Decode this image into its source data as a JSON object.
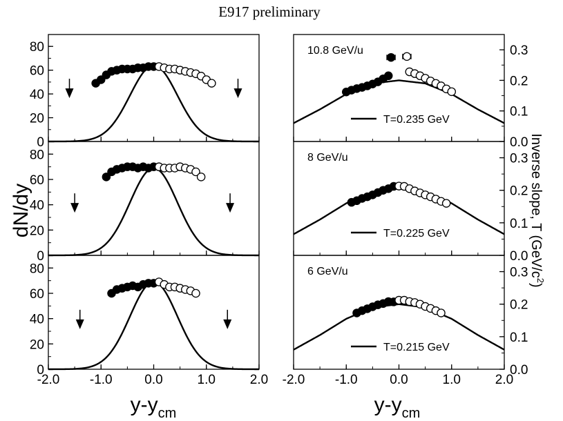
{
  "figure_title": "E917 preliminary",
  "left_ylabel": "dN/dy",
  "right_ylabel": "Inverse slope, T (GeV/c",
  "right_ylabel_sup": "2",
  "right_ylabel_close": ")",
  "xlabel_main": "y-y",
  "xlabel_sub": "cm",
  "chart_data": [
    {
      "type": "scatter",
      "panel": "left-top",
      "xlim": [
        -2,
        2
      ],
      "ylim": [
        0,
        90
      ],
      "x_ticks": [
        "-2.0",
        "-1.0",
        "0.0",
        "1.0",
        "2.0"
      ],
      "y_ticks": [
        "0",
        "20",
        "40",
        "60",
        "80"
      ],
      "series": [
        {
          "marker": "filled-circle",
          "x": [
            -1.1,
            -1.0,
            -0.9,
            -0.8,
            -0.7,
            -0.6,
            -0.5,
            -0.4,
            -0.3,
            -0.2,
            -0.1,
            0.0
          ],
          "y": [
            49,
            52,
            56,
            59,
            60,
            61,
            61,
            61,
            62,
            62,
            63,
            63
          ]
        },
        {
          "marker": "open-circle",
          "x": [
            0.1,
            0.2,
            0.3,
            0.4,
            0.5,
            0.6,
            0.7,
            0.8,
            0.9,
            1.0,
            1.1
          ],
          "y": [
            63,
            62,
            61,
            61,
            60,
            59,
            58,
            57,
            55,
            52,
            49
          ]
        },
        {
          "line": "gaussian",
          "x0": 0.0,
          "sigma": 0.45,
          "peak": 64
        }
      ],
      "arrows": [
        {
          "x": -1.6,
          "y": 40
        },
        {
          "x": 1.6,
          "y": 40
        }
      ]
    },
    {
      "type": "scatter",
      "panel": "left-middle",
      "xlim": [
        -2,
        2
      ],
      "ylim": [
        0,
        90
      ],
      "x_ticks": [
        "-2.0",
        "-1.0",
        "0.0",
        "1.0",
        "2.0"
      ],
      "y_ticks": [
        "0",
        "20",
        "40",
        "60",
        "80"
      ],
      "series": [
        {
          "marker": "filled-circle",
          "x": [
            -0.9,
            -0.8,
            -0.7,
            -0.6,
            -0.5,
            -0.4,
            -0.3,
            -0.2,
            -0.1,
            0.0
          ],
          "y": [
            62,
            66,
            68,
            69,
            70,
            70,
            69,
            70,
            69,
            70
          ]
        },
        {
          "marker": "open-circle",
          "x": [
            0.1,
            0.2,
            0.3,
            0.4,
            0.5,
            0.6,
            0.7,
            0.8,
            0.9
          ],
          "y": [
            70,
            69,
            69,
            69,
            70,
            69,
            68,
            66,
            62
          ]
        },
        {
          "line": "gaussian",
          "x0": 0.0,
          "sigma": 0.45,
          "peak": 69
        }
      ],
      "arrows": [
        {
          "x": -1.5,
          "y": 37
        },
        {
          "x": 1.45,
          "y": 37
        }
      ]
    },
    {
      "type": "scatter",
      "panel": "left-bottom",
      "xlim": [
        -2,
        2
      ],
      "ylim": [
        0,
        90
      ],
      "x_ticks": [
        "-2.0",
        "-1.0",
        "0.0",
        "1.0",
        "2.0"
      ],
      "y_ticks": [
        "0",
        "20",
        "40",
        "60",
        "80"
      ],
      "series": [
        {
          "marker": "filled-circle",
          "x": [
            -0.8,
            -0.7,
            -0.6,
            -0.5,
            -0.4,
            -0.3,
            -0.2,
            -0.1,
            0.0
          ],
          "y": [
            60,
            63,
            64,
            65,
            66,
            65,
            67,
            68,
            68
          ]
        },
        {
          "marker": "open-circle",
          "x": [
            0.1,
            0.2,
            0.3,
            0.4,
            0.5,
            0.6,
            0.7,
            0.8
          ],
          "y": [
            69,
            67,
            65,
            65,
            64,
            63,
            62,
            60
          ]
        },
        {
          "line": "gaussian",
          "x0": 0.0,
          "sigma": 0.45,
          "peak": 69
        }
      ],
      "arrows": [
        {
          "x": -1.4,
          "y": 35
        },
        {
          "x": 1.4,
          "y": 35
        }
      ]
    },
    {
      "type": "scatter",
      "panel": "right-top",
      "label": "10.8 GeV/u",
      "legend": "T=0.235 GeV",
      "xlim": [
        -2,
        2
      ],
      "ylim": [
        0,
        0.35
      ],
      "x_ticks": [
        "-2.0",
        "-1.0",
        "0.0",
        "1.0",
        "2.0"
      ],
      "y_ticks": [
        "0.0",
        "0.1",
        "0.2",
        "0.3"
      ],
      "series": [
        {
          "marker": "filled-circle",
          "x": [
            -1.0,
            -0.9,
            -0.8,
            -0.7,
            -0.6,
            -0.5,
            -0.4,
            -0.3,
            -0.2
          ],
          "y": [
            0.162,
            0.168,
            0.173,
            0.177,
            0.182,
            0.188,
            0.195,
            0.205,
            0.215
          ]
        },
        {
          "marker": "open-circle",
          "x": [
            0.2,
            0.3,
            0.4,
            0.5,
            0.6,
            0.7,
            0.8,
            0.9,
            1.0
          ],
          "y": [
            0.228,
            0.222,
            0.215,
            0.207,
            0.198,
            0.19,
            0.182,
            0.172,
            0.163
          ]
        },
        {
          "marker": "filled-circle",
          "x": [
            -0.15
          ],
          "y": [
            0.275
          ],
          "error_x": 0.08
        },
        {
          "marker": "open-circle",
          "x": [
            0.15
          ],
          "y": [
            0.278
          ],
          "error_x": 0.08
        },
        {
          "line": "curve",
          "x": [
            -2.0,
            -1.5,
            -1.0,
            -0.5,
            0.0,
            0.5,
            1.0,
            1.5,
            2.0
          ],
          "y": [
            0.06,
            0.105,
            0.155,
            0.19,
            0.2,
            0.19,
            0.155,
            0.105,
            0.06
          ]
        }
      ]
    },
    {
      "type": "scatter",
      "panel": "right-middle",
      "label": "8 GeV/u",
      "legend": "T=0.225 GeV",
      "xlim": [
        -2,
        2
      ],
      "ylim": [
        0,
        0.35
      ],
      "x_ticks": [
        "-2.0",
        "-1.0",
        "0.0",
        "1.0",
        "2.0"
      ],
      "y_ticks": [
        "0.0",
        "0.1",
        "0.2",
        "0.3"
      ],
      "series": [
        {
          "marker": "filled-circle",
          "x": [
            -0.9,
            -0.8,
            -0.7,
            -0.6,
            -0.5,
            -0.4,
            -0.3,
            -0.2,
            -0.1
          ],
          "y": [
            0.163,
            0.168,
            0.175,
            0.18,
            0.186,
            0.193,
            0.2,
            0.205,
            0.212
          ]
        },
        {
          "marker": "open-circle",
          "x": [
            0.0,
            0.1,
            0.2,
            0.3,
            0.4,
            0.5,
            0.6,
            0.7,
            0.8,
            0.9
          ],
          "y": [
            0.213,
            0.212,
            0.205,
            0.198,
            0.192,
            0.186,
            0.18,
            0.173,
            0.166,
            0.16
          ]
        },
        {
          "line": "curve",
          "x": [
            -2.0,
            -1.5,
            -1.0,
            -0.5,
            0.0,
            0.5,
            1.0,
            1.5,
            2.0
          ],
          "y": [
            0.065,
            0.11,
            0.16,
            0.195,
            0.205,
            0.195,
            0.16,
            0.11,
            0.065
          ]
        }
      ]
    },
    {
      "type": "scatter",
      "panel": "right-bottom",
      "label": "6 GeV/u",
      "legend": "T=0.215 GeV",
      "xlim": [
        -2,
        2
      ],
      "ylim": [
        0,
        0.35
      ],
      "x_ticks": [
        "-2.0",
        "-1.0",
        "0.0",
        "1.0",
        "2.0"
      ],
      "y_ticks": [
        "0.0",
        "0.1",
        "0.2",
        "0.3"
      ],
      "series": [
        {
          "marker": "filled-circle",
          "x": [
            -0.8,
            -0.7,
            -0.6,
            -0.5,
            -0.4,
            -0.3,
            -0.2,
            -0.1
          ],
          "y": [
            0.173,
            0.18,
            0.186,
            0.192,
            0.198,
            0.202,
            0.208,
            0.207
          ]
        },
        {
          "marker": "open-circle",
          "x": [
            0.0,
            0.1,
            0.2,
            0.3,
            0.4,
            0.5,
            0.6,
            0.7,
            0.8
          ],
          "y": [
            0.212,
            0.212,
            0.208,
            0.205,
            0.2,
            0.193,
            0.187,
            0.18,
            0.173
          ]
        },
        {
          "line": "curve",
          "x": [
            -2.0,
            -1.5,
            -1.0,
            -0.5,
            0.0,
            0.5,
            1.0,
            1.5,
            2.0
          ],
          "y": [
            0.06,
            0.105,
            0.155,
            0.19,
            0.2,
            0.19,
            0.155,
            0.105,
            0.06
          ]
        }
      ]
    }
  ]
}
